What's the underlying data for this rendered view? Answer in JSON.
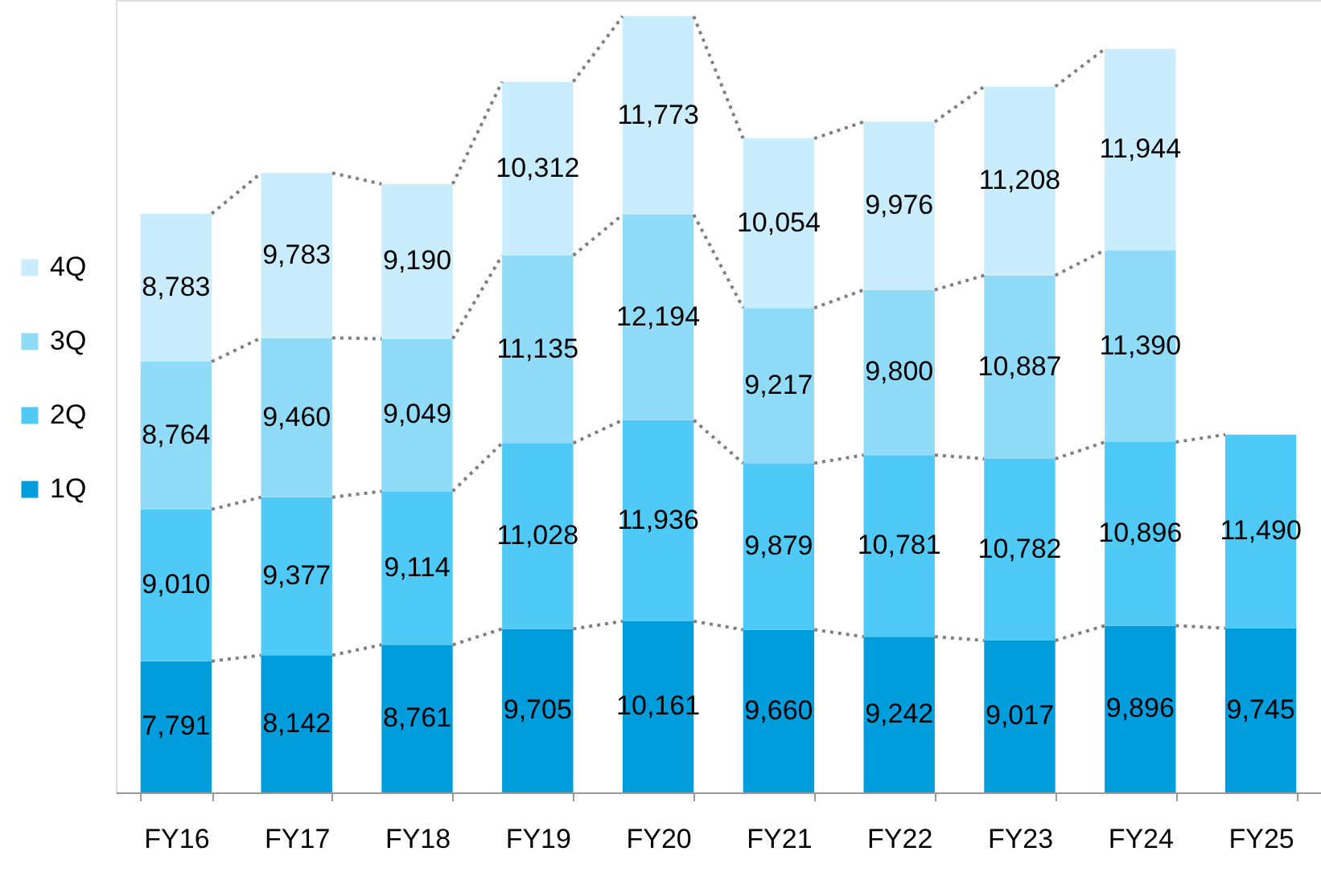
{
  "chart_data": {
    "type": "bar",
    "stacked": true,
    "grid": false,
    "legend": "left",
    "categories": [
      "FY16",
      "FY17",
      "FY18",
      "FY19",
      "FY20",
      "FY21",
      "FY22",
      "FY23",
      "FY24",
      "FY25"
    ],
    "series": [
      {
        "name": "1Q",
        "color": "#009ddc",
        "values": [
          7791,
          8142,
          8761,
          9705,
          10161,
          9660,
          9242,
          9017,
          9896,
          9745
        ],
        "value_labels": [
          "7,791",
          "8,142",
          "8,761",
          "9,705",
          "10,161",
          "9,660",
          "9,242",
          "9,017",
          "9,896",
          "9,745"
        ]
      },
      {
        "name": "2Q",
        "color": "#4fc9f5",
        "values": [
          9010,
          9377,
          9114,
          11028,
          11936,
          9879,
          10781,
          10782,
          10896,
          11490
        ],
        "value_labels": [
          "9,010",
          "9,377",
          "9,114",
          "11,028",
          "11,936",
          "9,879",
          "10,781",
          "10,782",
          "10,896",
          "11,490"
        ]
      },
      {
        "name": "3Q",
        "color": "#8fdbf8",
        "values": [
          8764,
          9460,
          9049,
          11135,
          12194,
          9217,
          9800,
          10887,
          11390,
          null
        ],
        "value_labels": [
          "8,764",
          "9,460",
          "9,049",
          "11,135",
          "12,194",
          "9,217",
          "9,800",
          "10,887",
          "11,390",
          null
        ]
      },
      {
        "name": "4Q",
        "color": "#c9edfc",
        "values": [
          8783,
          9783,
          9190,
          10312,
          11773,
          10054,
          9976,
          11208,
          11944,
          null
        ],
        "value_labels": [
          "8,783",
          "9,783",
          "9,190",
          "10,312",
          "11,773",
          "10,054",
          "9,976",
          "11,208",
          "11,944",
          null
        ]
      }
    ]
  }
}
